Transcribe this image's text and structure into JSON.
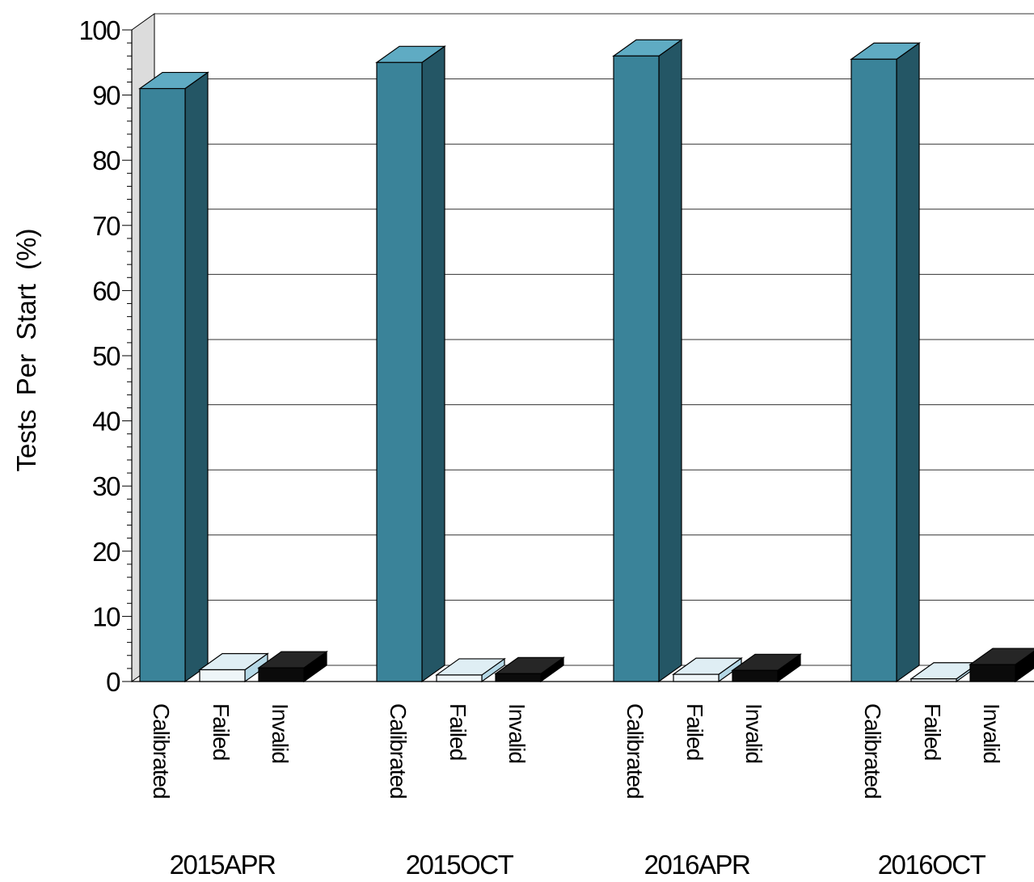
{
  "chart_data": {
    "type": "bar",
    "ylabel": "Tests Per Start (%)",
    "ylim": [
      0,
      100
    ],
    "yticks": [
      "0",
      "10",
      "20",
      "30",
      "40",
      "50",
      "60",
      "70",
      "80",
      "90",
      "100"
    ],
    "categories": [
      "Calibrated",
      "Failed",
      "Invalid"
    ],
    "groups": [
      "2015APR",
      "2015OCT",
      "2016APR",
      "2016OCT"
    ],
    "series": [
      {
        "group": "2015APR",
        "values": [
          91.0,
          1.8,
          2.1
        ]
      },
      {
        "group": "2015OCT",
        "values": [
          95.0,
          1.0,
          1.2
        ]
      },
      {
        "group": "2016APR",
        "values": [
          96.0,
          1.1,
          1.7
        ]
      },
      {
        "group": "2016OCT",
        "values": [
          95.5,
          0.4,
          2.6
        ]
      }
    ],
    "colors": {
      "Calibrated": {
        "front": "#3a8399",
        "top": "#5fabc3",
        "side": "#245665"
      },
      "Failed": {
        "front": "#eef5f8",
        "top": "#dfeef4",
        "side": "#b5d8e6"
      },
      "Invalid": {
        "front": "#0b0b0b",
        "top": "#262626",
        "side": "#000000"
      }
    },
    "grid": true,
    "style": "3d"
  }
}
